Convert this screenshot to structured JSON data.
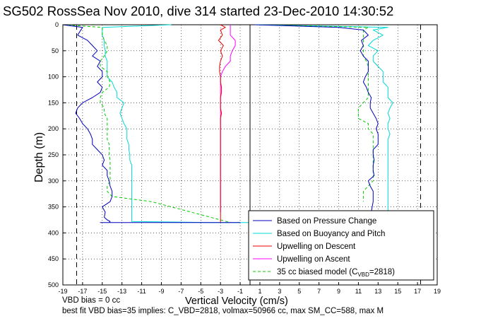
{
  "chart_data": {
    "type": "line",
    "title": "SG502 RossSea Nov 2010, dive 314 started 23-Dec-2010 14:30:52",
    "xlabel": "Vertical Velocity (cm/s)",
    "ylabel": "Depth (m)",
    "xlim": [
      -19,
      19
    ],
    "ylim": [
      0,
      500
    ],
    "y_reversed": true,
    "grid": true,
    "x_ticks": [
      "-19",
      "-17",
      "-15",
      "-13",
      "-11",
      "-9",
      "-7",
      "-5",
      "-3",
      "-1",
      "1",
      "3",
      "5",
      "7",
      "9",
      "11",
      "13",
      "15",
      "17",
      "19"
    ],
    "y_ticks": [
      "0",
      "50",
      "100",
      "150",
      "200",
      "250",
      "300",
      "350",
      "400",
      "450",
      "500"
    ],
    "legend_placement": "bottom-right",
    "reference_lines_x": [
      -17.3,
      17.3
    ],
    "center_line_x": 0,
    "series": [
      {
        "name": "Based on Pressure Change",
        "color": "#0000bb",
        "side": "descent",
        "x": [
          -19,
          -17,
          -17.5,
          -16.5,
          -16,
          -15.5,
          -16,
          -15.2,
          -15.5,
          -15,
          -15,
          -15.5,
          -15,
          -15.2,
          -16,
          -17,
          -17.5,
          -17.7,
          -17.3,
          -17,
          -16.5,
          -16.2,
          -16,
          -16,
          -15.5,
          -15,
          -14.8,
          -15,
          -14.5,
          -14.5,
          -14.3,
          -14.2,
          -14,
          -14,
          -14.2,
          -15,
          -14.7,
          -14.8,
          -14.5,
          -14.2,
          -14.3,
          -15,
          -14.8,
          -15.2,
          -15.2,
          -15,
          -14,
          -6,
          -1
        ],
        "y": [
          0,
          5,
          20,
          30,
          40,
          50,
          60,
          70,
          80,
          90,
          100,
          110,
          120,
          130,
          140,
          150,
          160,
          170,
          180,
          190,
          200,
          210,
          220,
          230,
          240,
          250,
          260,
          270,
          280,
          290,
          300,
          310,
          320,
          330,
          340,
          350,
          360,
          370,
          375,
          378,
          380,
          380,
          380,
          380,
          380,
          380,
          380,
          380,
          380
        ]
      },
      {
        "name": "Based on Buoyancy and Pitch",
        "color": "#00d8d8",
        "side": "descent",
        "x": [
          -8,
          -15,
          -15,
          -15,
          -14.8,
          -14.8,
          -14.7,
          -14.7,
          -14.5,
          -14.5,
          -14.5,
          -14.5,
          -14,
          -13.8,
          -13.5,
          -13.5,
          -12.8,
          -13,
          -13.2,
          -13,
          -12.8,
          -12.5,
          -12.5,
          -12.5,
          -12.3,
          -12.3,
          -12.2,
          -12.2,
          -12,
          -12,
          -12,
          -12,
          -12,
          -12,
          -12,
          -12,
          -12,
          -12,
          -12,
          -12,
          -12,
          -4,
          0
        ],
        "y": [
          0,
          5,
          10,
          20,
          30,
          40,
          50,
          60,
          70,
          80,
          90,
          100,
          110,
          120,
          130,
          140,
          150,
          160,
          170,
          180,
          190,
          200,
          210,
          220,
          230,
          240,
          250,
          260,
          270,
          280,
          290,
          300,
          310,
          320,
          330,
          340,
          350,
          360,
          370,
          375,
          378,
          380,
          380
        ]
      },
      {
        "name": "Upwelling on Descent",
        "color": "#ee0000",
        "side": "upwelling",
        "x": [
          -3,
          -2.5,
          -3,
          -2.8,
          -3.2,
          -2.7,
          -3,
          -2.8,
          -3,
          -3.1,
          -3.1,
          -3,
          -3,
          -2.9,
          -2.9,
          -3,
          -3,
          -3,
          -2.9,
          -3,
          -3,
          -3,
          -3,
          -3,
          -3,
          -3,
          -3,
          -3,
          -3,
          -3,
          -3,
          -3,
          -3,
          -3,
          -3,
          -3,
          -3,
          -3,
          -3,
          -3,
          -3
        ],
        "y": [
          0,
          5,
          10,
          20,
          30,
          40,
          50,
          60,
          70,
          80,
          90,
          100,
          110,
          120,
          130,
          140,
          150,
          160,
          170,
          180,
          190,
          200,
          210,
          220,
          230,
          240,
          250,
          260,
          270,
          280,
          290,
          300,
          310,
          320,
          330,
          340,
          350,
          360,
          370,
          378,
          380
        ]
      },
      {
        "name": "Upwelling on Ascent",
        "color": "#ff00ff",
        "side": "upwelling",
        "x": [
          -2,
          -2,
          -2,
          -2,
          -1.5,
          -1.5,
          -1.8,
          -2,
          -2,
          -2.5,
          -2.8,
          -3,
          -3,
          -3,
          -3,
          -3,
          -3,
          -3,
          -3,
          -3,
          -3,
          -3,
          -3,
          -3,
          -3,
          -3,
          -3,
          -3,
          -3,
          -3,
          -3,
          -3,
          -3,
          -3,
          -3,
          -3,
          -3,
          -3
        ],
        "y": [
          0,
          5,
          10,
          20,
          30,
          40,
          50,
          60,
          70,
          80,
          90,
          100,
          110,
          120,
          130,
          140,
          150,
          160,
          170,
          180,
          190,
          200,
          210,
          220,
          230,
          240,
          250,
          260,
          270,
          280,
          290,
          300,
          310,
          320,
          330,
          340,
          350,
          360
        ]
      },
      {
        "name": "35 cc biased model (C_VBD=2818)",
        "color": "#00cc00",
        "dashed": true,
        "side": "descent",
        "x": [
          -19,
          -15,
          -15,
          -15,
          -14.8,
          -14.5,
          -14.5,
          -14.8,
          -15.2,
          -15.2,
          -14.5,
          -14.5,
          -14.2,
          -14.3,
          -15,
          -15.2,
          -15.2,
          -14.8,
          -14.8,
          -14.5,
          -14.5,
          -14.5,
          -14.5,
          -14.5,
          -14.3,
          -14.3,
          -14.3,
          -14.2,
          -14.2,
          -14.2,
          -14.2,
          -14.2,
          -14.5,
          -14.5,
          -14,
          -10,
          -2
        ],
        "y": [
          0,
          5,
          10,
          20,
          30,
          40,
          50,
          60,
          70,
          80,
          90,
          100,
          110,
          120,
          130,
          140,
          150,
          160,
          170,
          180,
          190,
          200,
          210,
          220,
          230,
          240,
          250,
          260,
          270,
          280,
          290,
          300,
          310,
          320,
          330,
          340,
          380
        ]
      },
      {
        "name": "Based on Pressure Change (ascent)",
        "color": "#0000bb",
        "side": "ascent",
        "x": [
          0.5,
          9,
          11.5,
          12,
          11.3,
          11.5,
          11.2,
          11.5,
          12,
          12,
          12,
          11.7,
          11.5,
          11.8,
          12,
          12.3,
          12.2,
          12.2,
          12.5,
          12.8,
          13,
          12.8,
          13,
          13,
          13,
          12.5,
          12.5,
          12.6,
          12.5,
          12.5,
          12.6,
          12,
          12.2,
          12.5,
          12.5,
          12.5,
          12.3
        ],
        "y": [
          0,
          5,
          10,
          20,
          30,
          40,
          50,
          60,
          70,
          80,
          90,
          100,
          110,
          120,
          130,
          140,
          150,
          160,
          170,
          180,
          190,
          200,
          210,
          220,
          230,
          240,
          250,
          260,
          270,
          280,
          290,
          300,
          310,
          320,
          330,
          340,
          360
        ]
      },
      {
        "name": "Based on Buoyancy and Pitch (ascent)",
        "color": "#00d8d8",
        "side": "ascent",
        "x": [
          0.5,
          14,
          12.5,
          13.5,
          12.5,
          12,
          13,
          12.5,
          12.5,
          13,
          13.5,
          13.5,
          13.5,
          14,
          14,
          14,
          14.5,
          14.2,
          14,
          14.2,
          14,
          14,
          14.2,
          14,
          14,
          14,
          14,
          14,
          14,
          14,
          14,
          14,
          14,
          14,
          14,
          14,
          14,
          14
        ],
        "y": [
          0,
          5,
          10,
          20,
          30,
          40,
          50,
          60,
          70,
          80,
          90,
          100,
          110,
          120,
          130,
          140,
          150,
          160,
          170,
          180,
          190,
          200,
          210,
          220,
          230,
          240,
          250,
          260,
          270,
          280,
          290,
          300,
          310,
          320,
          330,
          340,
          350,
          360
        ]
      },
      {
        "name": "35 cc biased model (ascent)",
        "color": "#00cc00",
        "dashed": true,
        "side": "ascent",
        "x": [
          0.5,
          12,
          11.5,
          11.5,
          11.5,
          11.5,
          11.5,
          11.5,
          11.8,
          12,
          12,
          12,
          12,
          12,
          12,
          12,
          11.5,
          11,
          11,
          11,
          12,
          12,
          12.5,
          12.5,
          12.5,
          12.5,
          12.5,
          12.5,
          12.5,
          12.5,
          12.5,
          12.5,
          12,
          11.5,
          11.5,
          11.5
        ],
        "y": [
          0,
          5,
          10,
          20,
          30,
          40,
          50,
          60,
          70,
          80,
          90,
          100,
          110,
          120,
          130,
          140,
          150,
          160,
          170,
          180,
          190,
          200,
          210,
          220,
          230,
          240,
          250,
          260,
          270,
          280,
          290,
          300,
          310,
          320,
          330,
          340
        ]
      }
    ],
    "notes": [
      "VBD bias = 0 cc",
      "best fit VBD bias=35 implies: C_VBD=2818, volmax=50966 cc, max SM_CC=588, max M"
    ]
  }
}
